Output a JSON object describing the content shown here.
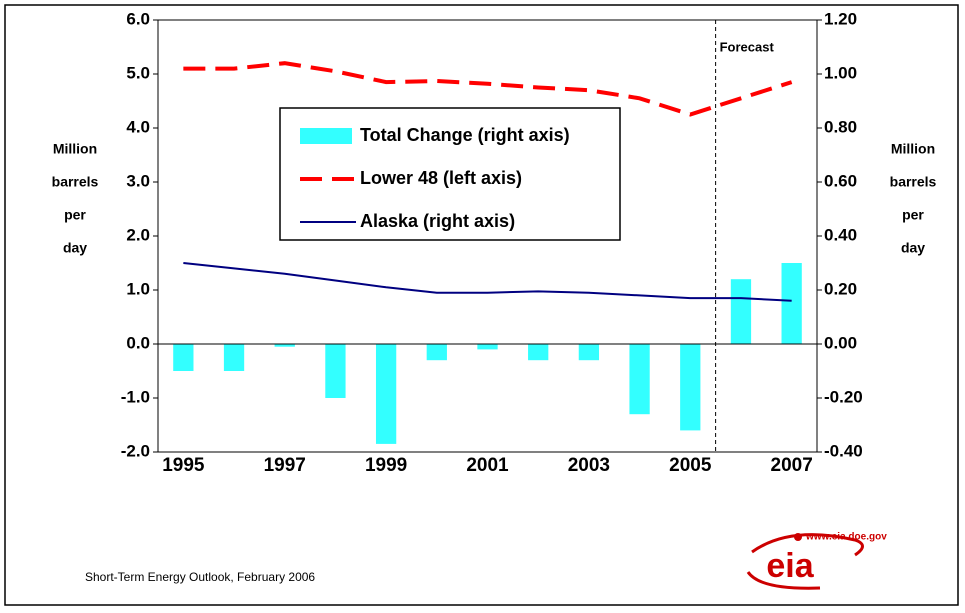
{
  "chart_data": {
    "type": "bar_line",
    "ylabel": [
      "Million",
      "barrels",
      "per",
      "day"
    ],
    "y2label": [
      "Million",
      "barrels",
      "per",
      "day"
    ],
    "categories": [
      "1995",
      null,
      "1997",
      null,
      "1999",
      null,
      "2001",
      null,
      "2003",
      null,
      "2005",
      null,
      "2007"
    ],
    "series": [
      {
        "name": "Total Change (right axis)",
        "type": "bar",
        "axis": "y2",
        "color": "#33ffff",
        "values": [
          -0.1,
          -0.1,
          -0.01,
          -0.2,
          -0.37,
          -0.06,
          -0.02,
          -0.06,
          -0.06,
          -0.26,
          -0.32,
          0.24,
          0.3
        ]
      },
      {
        "name": "Lower 48 (left axis)",
        "type": "line",
        "dash": true,
        "color": "#ff0000",
        "values": [
          5.1,
          5.1,
          5.2,
          5.05,
          4.85,
          4.87,
          4.82,
          4.75,
          4.7,
          4.55,
          4.25,
          4.55,
          4.85
        ]
      },
      {
        "name": "Alaska (right axis)",
        "type": "line",
        "axis": "y2",
        "color": "#000080",
        "values": [
          0.3,
          0.28,
          0.26,
          0.235,
          0.21,
          0.19,
          0.19,
          0.195,
          0.19,
          0.18,
          0.17,
          0.17,
          0.16
        ]
      }
    ],
    "ylim": [
      -2,
      6
    ],
    "yticks": [
      {
        "value": -2,
        "label": "-2.0"
      },
      {
        "value": -1,
        "label": "-1.0"
      },
      {
        "value": 0,
        "label": "0.0"
      },
      {
        "value": 1,
        "label": "1.0"
      },
      {
        "value": 2,
        "label": "2.0"
      },
      {
        "value": 3,
        "label": "3.0"
      },
      {
        "value": 4,
        "label": "4.0"
      },
      {
        "value": 5,
        "label": "5.0"
      },
      {
        "value": 6,
        "label": "6.0"
      }
    ],
    "y2lim": [
      -0.4,
      1.2
    ],
    "y2ticks": [
      {
        "value": -0.4,
        "label": "-0.40"
      },
      {
        "value": -0.2,
        "label": "-0.20"
      },
      {
        "value": 0,
        "label": "0.00"
      },
      {
        "value": 0.2,
        "label": "0.20"
      },
      {
        "value": 0.4,
        "label": "0.40"
      },
      {
        "value": 0.6,
        "label": "0.60"
      },
      {
        "value": 0.8,
        "label": "0.80"
      },
      {
        "value": 1.0,
        "label": "1.00"
      },
      {
        "value": 1.2,
        "label": "1.20"
      }
    ],
    "annotation": "Forecast",
    "source": "Short-Term Energy Outlook,  February 2006",
    "logo_url": "www.eia.doe.gov",
    "logo": "eia"
  }
}
